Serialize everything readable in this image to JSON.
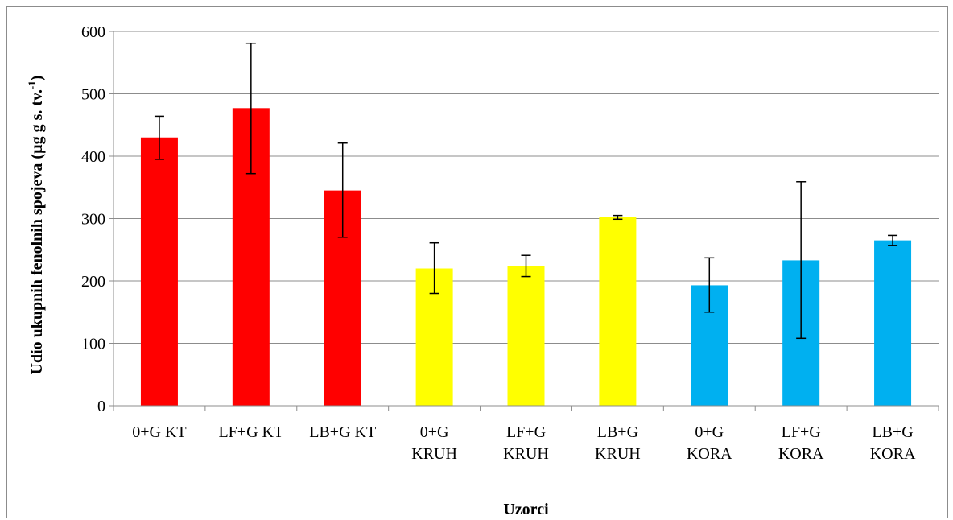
{
  "chart_data": {
    "type": "bar",
    "xlabel": "Uzorci",
    "ylabel": "Udio ukupnih fenolnih spojeva (µg g s. tv.",
    "ylabel_sup": "-1",
    "ylabel_close": ")",
    "ylim": [
      0,
      600
    ],
    "yticks": [
      0,
      100,
      200,
      300,
      400,
      500,
      600
    ],
    "grid": true,
    "legend": "none",
    "categories": [
      [
        "0+G KT"
      ],
      [
        "LF+G KT"
      ],
      [
        "LB+G KT"
      ],
      [
        "0+G",
        "KRUH"
      ],
      [
        "LF+G",
        "KRUH"
      ],
      [
        "LB+G",
        "KRUH"
      ],
      [
        "0+G",
        "KORA"
      ],
      [
        "LF+G",
        "KORA"
      ],
      [
        "LB+G",
        "KORA"
      ]
    ],
    "values": [
      430,
      477,
      345,
      220,
      224,
      302,
      193,
      233,
      265
    ],
    "error_low": [
      395,
      372,
      270,
      180,
      207,
      299,
      150,
      108,
      257
    ],
    "error_high": [
      464,
      581,
      421,
      261,
      241,
      305,
      237,
      359,
      273
    ],
    "colors": [
      "#ff0000",
      "#ff0000",
      "#ff0000",
      "#ffff00",
      "#ffff00",
      "#ffff00",
      "#00b0f0",
      "#00b0f0",
      "#00b0f0"
    ]
  }
}
